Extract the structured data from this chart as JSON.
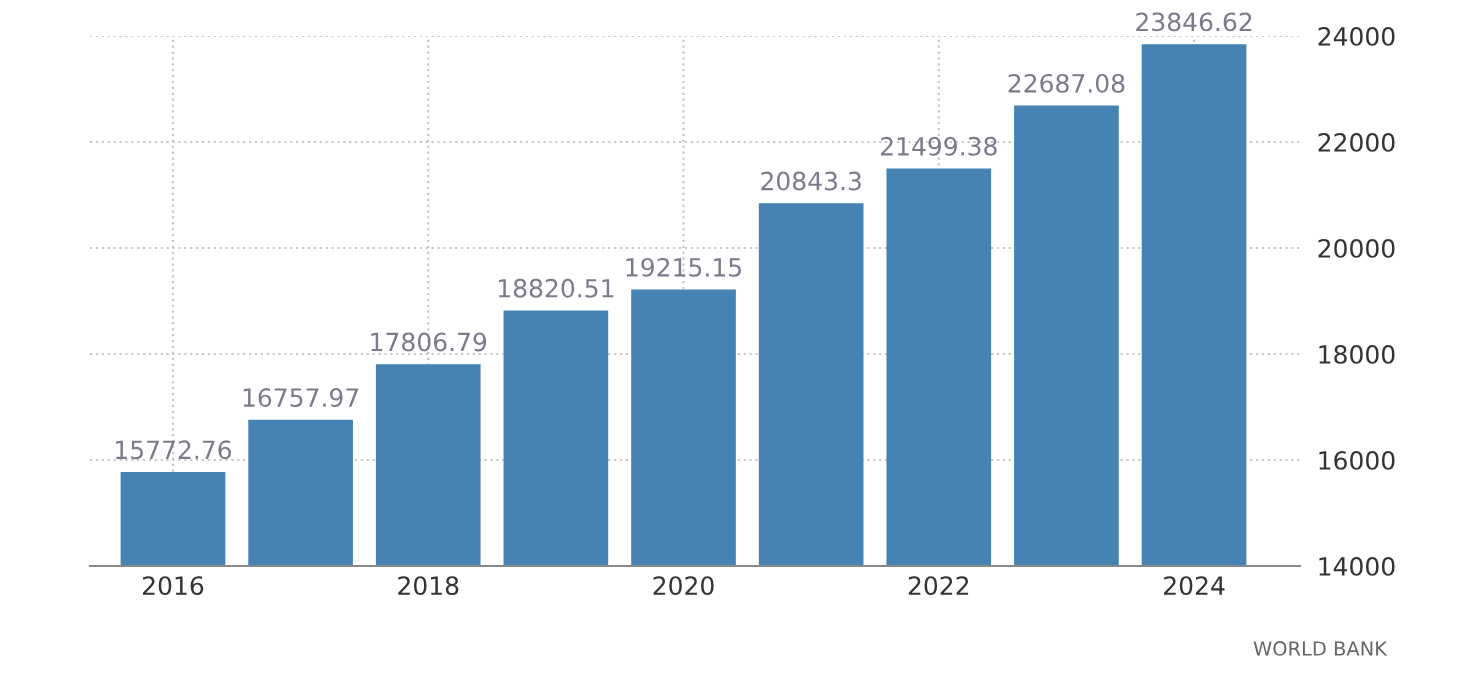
{
  "chart_data": {
    "type": "bar",
    "x": [
      2016,
      2017,
      2018,
      2019,
      2020,
      2021,
      2022,
      2023,
      2024
    ],
    "values": [
      15772.76,
      16757.97,
      17806.79,
      18820.51,
      19215.15,
      20843.3,
      21499.38,
      22687.08,
      23846.62
    ],
    "color": "#4682b4",
    "data_labels": true,
    "xlim": [
      2015.35,
      2024.83
    ],
    "xticks": [
      2016,
      2018,
      2020,
      2022,
      2024
    ],
    "ylim": [
      14000,
      24000
    ],
    "yticks": [
      14000,
      16000,
      18000,
      20000,
      22000,
      24000
    ],
    "grid": true,
    "annotations": [
      "WORLD BANK"
    ]
  }
}
